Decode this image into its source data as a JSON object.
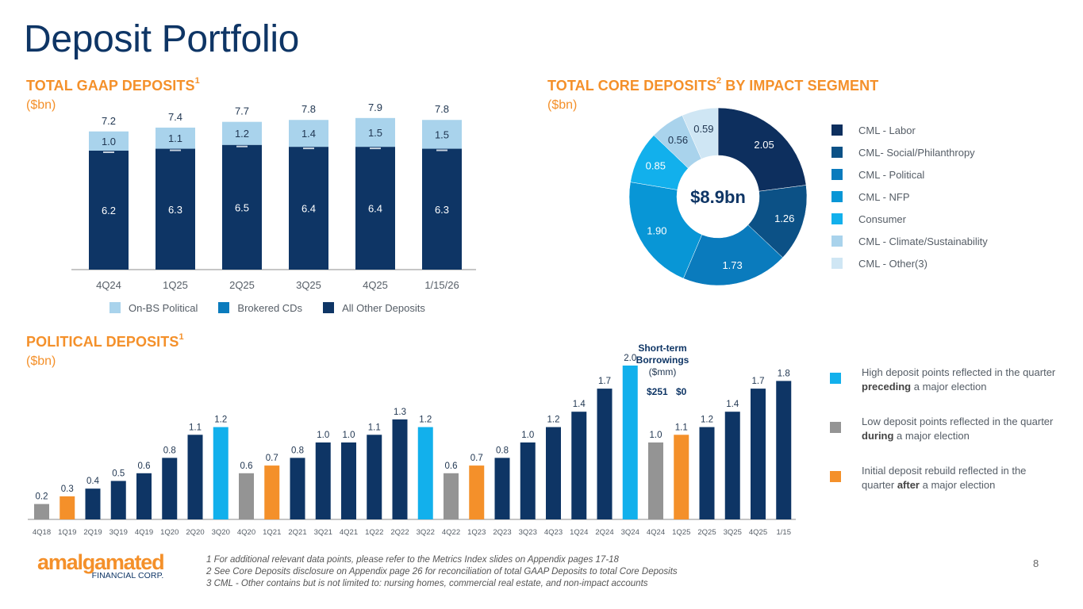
{
  "page": {
    "title": "Deposit Portfolio",
    "page_number": "8"
  },
  "colors": {
    "navy": "#0e3565",
    "orange": "#f4902a",
    "light_blue": "#a9d3ec",
    "brokered": "#0a7bbd",
    "cyan": "#12b0ec",
    "gray": "#949494"
  },
  "gaap": {
    "title": "TOTAL GAAP DEPOSITS",
    "footnote_ref": "1",
    "unit": "($bn)"
  },
  "core": {
    "title": "TOTAL CORE DEPOSITS",
    "footnote_ref": "2",
    "title_suffix": " BY IMPACT SEGMENT",
    "unit": "($bn)",
    "center_label": "$8.9bn"
  },
  "political": {
    "title": "POLITICAL DEPOSITS",
    "footnote_ref": "1",
    "unit": "($bn)",
    "annotation": {
      "line1": "Short-term",
      "line2": "Borrowings",
      "line3": "($mm)",
      "value_a": "$251",
      "value_b": "$0"
    },
    "notes": [
      {
        "pre": "High deposit points reflected in the quarter ",
        "bold": "preceding",
        "post": " a major election",
        "color": "#12b0ec"
      },
      {
        "pre": "Low deposit points reflected in the quarter ",
        "bold": "during",
        "post": " a major election",
        "color": "#949494"
      },
      {
        "pre": "Initial deposit rebuild reflected in the quarter ",
        "bold": "after",
        "post": " a major election",
        "color": "#f4902a"
      }
    ]
  },
  "footnotes": [
    "1 For additional relevant data points, please refer to the Metrics Index slides on Appendix pages 17-18",
    "2 See Core Deposits disclosure on Appendix page 26 for reconciliation of total GAAP Deposits to total Core Deposits",
    "3 CML - Other contains but is not limited to: nursing homes, commercial real estate, and non-impact accounts"
  ],
  "logo": {
    "name": "amalgamated",
    "sub": "FINANCIAL CORP."
  },
  "chart_data": [
    {
      "id": "gaap",
      "type": "bar",
      "stacked": true,
      "title": "TOTAL GAAP DEPOSITS",
      "ylabel": "($bn)",
      "categories": [
        "4Q24",
        "1Q25",
        "2Q25",
        "3Q25",
        "4Q25",
        "1/15/26"
      ],
      "series": [
        {
          "name": "All Other  Deposits",
          "color": "#0e3565",
          "values": [
            6.2,
            6.3,
            6.5,
            6.4,
            6.4,
            6.3
          ]
        },
        {
          "name": "Brokered CDs",
          "color": "#0a7bbd",
          "values": [
            0.02,
            0.02,
            0.02,
            0.02,
            0.02,
            0.02
          ],
          "labels_hidden": true
        },
        {
          "name": "On-BS Political",
          "color": "#a9d3ec",
          "values": [
            1.0,
            1.1,
            1.2,
            1.4,
            1.5,
            1.5
          ]
        }
      ],
      "totals": [
        "7.2",
        "7.4",
        "7.7",
        "7.8",
        "7.9",
        "7.8"
      ],
      "legend_order": [
        "On-BS Political",
        "Brokered CDs",
        "All Other  Deposits"
      ],
      "legend_position": "bottom",
      "ylim": [
        0,
        8.5
      ],
      "grid": false
    },
    {
      "id": "core",
      "type": "pie",
      "donut": true,
      "title": "TOTAL CORE DEPOSITS BY IMPACT SEGMENT",
      "unit": "($bn)",
      "center_label": "$8.9bn",
      "slices": [
        {
          "label": "CML - Labor",
          "value": 2.05,
          "display": "2.05",
          "color": "#0d2f5e",
          "text_color": "#ffffff"
        },
        {
          "label": "CML- Social/Philanthropy",
          "value": 1.26,
          "display": "1.26",
          "color": "#0c5186",
          "text_color": "#ffffff"
        },
        {
          "label": "CML - Political",
          "value": 1.73,
          "display": "1.73",
          "color": "#0a7bbd",
          "text_color": "#ffffff"
        },
        {
          "label": "CML - NFP",
          "value": 1.9,
          "display": "1.90",
          "color": "#0896d6",
          "text_color": "#ffffff"
        },
        {
          "label": "Consumer",
          "value": 0.85,
          "display": "0.85",
          "color": "#12b0ec",
          "text_color": "#ffffff"
        },
        {
          "label": "CML - Climate/Sustainability",
          "value": 0.56,
          "display": "0.56",
          "color": "#a9d3ec",
          "text_color": "#1f3550"
        },
        {
          "label": "CML - Other(3)",
          "value": 0.59,
          "display": "0.59",
          "color": "#cfe6f4",
          "text_color": "#1f3550"
        }
      ],
      "legend_position": "right"
    },
    {
      "id": "political",
      "type": "bar",
      "title": "POLITICAL DEPOSITS",
      "ylabel": "($bn)",
      "categories": [
        "4Q18",
        "1Q19",
        "2Q19",
        "3Q19",
        "4Q19",
        "1Q20",
        "2Q20",
        "3Q20",
        "4Q20",
        "1Q21",
        "2Q21",
        "3Q21",
        "4Q21",
        "1Q22",
        "2Q22",
        "3Q22",
        "4Q22",
        "1Q23",
        "2Q23",
        "3Q23",
        "4Q23",
        "1Q24",
        "2Q24",
        "3Q24",
        "4Q24",
        "1Q25",
        "2Q25",
        "3Q25",
        "4Q25",
        "1/15"
      ],
      "values": [
        0.2,
        0.3,
        0.4,
        0.5,
        0.6,
        0.8,
        1.1,
        1.2,
        0.6,
        0.7,
        0.8,
        1.0,
        1.0,
        1.1,
        1.3,
        1.2,
        0.6,
        0.7,
        0.8,
        1.0,
        1.2,
        1.4,
        1.7,
        2.0,
        1.0,
        1.1,
        1.2,
        1.4,
        1.7,
        1.8
      ],
      "labels": [
        "0.2",
        "0.3",
        "0.4",
        "0.5",
        "0.6",
        "0.8",
        "1.1",
        "1.2",
        "0.6",
        "0.7",
        "0.8",
        "1.0",
        "1.0",
        "1.1",
        "1.3",
        "1.2",
        "0.6",
        "0.7",
        "0.8",
        "1.0",
        "1.2",
        "1.4",
        "1.7",
        "2.0",
        "1.0",
        "1.1",
        "1.2",
        "1.4",
        "1.7",
        "1.8"
      ],
      "bar_types": [
        "during",
        "after",
        "normal",
        "normal",
        "normal",
        "normal",
        "normal",
        "preceding",
        "during",
        "after",
        "normal",
        "normal",
        "normal",
        "normal",
        "normal",
        "preceding",
        "during",
        "after",
        "normal",
        "normal",
        "normal",
        "normal",
        "normal",
        "preceding",
        "during",
        "after",
        "normal",
        "normal",
        "normal",
        "normal"
      ],
      "type_colors": {
        "normal": "#0e3565",
        "preceding": "#12b0ec",
        "during": "#949494",
        "after": "#f4902a"
      },
      "ylim": [
        0,
        2.0
      ],
      "grid": false,
      "legend_position": "right"
    }
  ]
}
